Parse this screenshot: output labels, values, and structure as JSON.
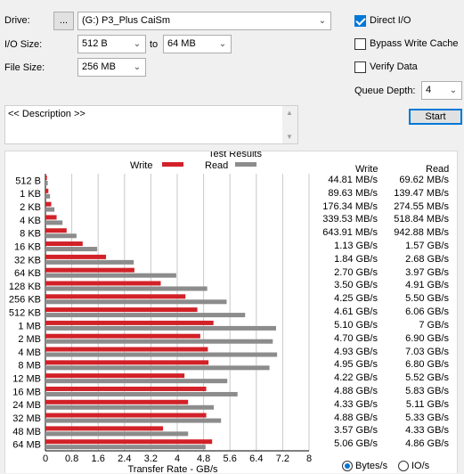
{
  "controls": {
    "drive_label": "Drive:",
    "browse_label": "...",
    "drive_value": "(G:) P3_Plus CaiSm",
    "io_size_label": "I/O Size:",
    "io_from": "512 B",
    "to_label": "to",
    "io_to": "64 MB",
    "file_size_label": "File Size:",
    "file_size": "256 MB",
    "direct_io_label": "Direct I/O",
    "direct_io_checked": true,
    "bypass_label": "Bypass Write Cache",
    "bypass_checked": false,
    "verify_label": "Verify Data",
    "verify_checked": false,
    "queue_depth_label": "Queue Depth:",
    "queue_depth": "4",
    "description": "<< Description >>",
    "start_label": "Start"
  },
  "results": {
    "title": "Test Results",
    "legend_write": "Write",
    "legend_read": "Read",
    "write_header": "Write",
    "read_header": "Read",
    "units_bytes": "Bytes/s",
    "units_io": "IO/s",
    "units_selected": "bytes",
    "write_values": [
      "44.81 MB/s",
      "89.63 MB/s",
      "176.34 MB/s",
      "339.53 MB/s",
      "643.91 MB/s",
      "1.13 GB/s",
      "1.84 GB/s",
      "2.70 GB/s",
      "3.50 GB/s",
      "4.25 GB/s",
      "4.61 GB/s",
      "5.10 GB/s",
      "4.70 GB/s",
      "4.93 GB/s",
      "4.95 GB/s",
      "4.22 GB/s",
      "4.88 GB/s",
      "4.33 GB/s",
      "4.88 GB/s",
      "3.57 GB/s",
      "5.06 GB/s"
    ],
    "read_values": [
      "69.62 MB/s",
      "139.47 MB/s",
      "274.55 MB/s",
      "518.84 MB/s",
      "942.88 MB/s",
      "1.57 GB/s",
      "2.68 GB/s",
      "3.97 GB/s",
      "4.91 GB/s",
      "5.50 GB/s",
      "6.06 GB/s",
      "7 GB/s",
      "6.90 GB/s",
      "7.03 GB/s",
      "6.80 GB/s",
      "5.52 GB/s",
      "5.83 GB/s",
      "5.11 GB/s",
      "5.33 GB/s",
      "4.33 GB/s",
      "4.86 GB/s"
    ]
  },
  "colors": {
    "write": "#d22128",
    "read": "#8c8c8c",
    "accent": "#0078d7"
  },
  "chart_data": {
    "type": "bar",
    "orientation": "horizontal",
    "title": "Test Results",
    "xlabel": "Transfer Rate - GB/s",
    "ylabel": "",
    "xlim": [
      0,
      8
    ],
    "xticks": [
      "0",
      "0.8",
      "1.6",
      "2.4",
      "3.2",
      "4",
      "4.8",
      "5.6",
      "6.4",
      "7.2",
      "8"
    ],
    "grid": true,
    "legend": "top",
    "categories": [
      "512 B",
      "1 KB",
      "2 KB",
      "4 KB",
      "8 KB",
      "16 KB",
      "32 KB",
      "64 KB",
      "128 KB",
      "256 KB",
      "512 KB",
      "1 MB",
      "2 MB",
      "4 MB",
      "8 MB",
      "12 MB",
      "16 MB",
      "24 MB",
      "32 MB",
      "48 MB",
      "64 MB"
    ],
    "series": [
      {
        "name": "Write",
        "values": [
          0.04481,
          0.08963,
          0.17634,
          0.33953,
          0.64391,
          1.13,
          1.84,
          2.7,
          3.5,
          4.25,
          4.61,
          5.1,
          4.7,
          4.93,
          4.95,
          4.22,
          4.88,
          4.33,
          4.88,
          3.57,
          5.06
        ]
      },
      {
        "name": "Read",
        "values": [
          0.06962,
          0.13947,
          0.27455,
          0.51884,
          0.94288,
          1.57,
          2.68,
          3.97,
          4.91,
          5.5,
          6.06,
          7.0,
          6.9,
          7.03,
          6.8,
          5.52,
          5.83,
          5.11,
          5.33,
          4.33,
          4.86
        ]
      }
    ]
  }
}
